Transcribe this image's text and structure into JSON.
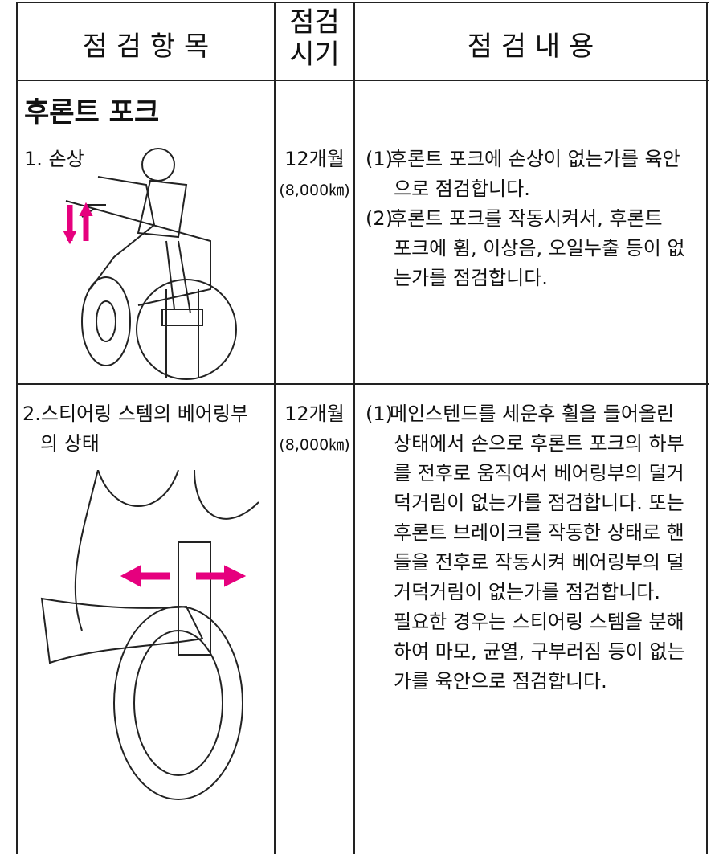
{
  "header": {
    "item": "점 검 항 목",
    "period": [
      "점검",
      "시기"
    ],
    "content": "점 검 내 용"
  },
  "section_title": "후론트 포크",
  "rows": [
    {
      "item": [
        "1. 손상"
      ],
      "period": "12개월",
      "distance": "(8,000㎞)",
      "content": [
        {
          "marker": "(1)",
          "lines": [
            "후론트 포크에 손상이 없는가를 육안",
            "으로 점검합니다."
          ]
        },
        {
          "marker": "(2)",
          "lines": [
            "후론트 포크를 작동시켜서, 후론트",
            "포크에 휨, 이상음, 오일누출 등이 없",
            "는가를 점검합니다."
          ]
        }
      ]
    },
    {
      "item": [
        "2.스티어링 스템의 베어링부",
        "의 상태"
      ],
      "period": "12개월",
      "distance": "(8,000㎞)",
      "content": [
        {
          "marker": "(1)",
          "lines": [
            "메인스텐드를 세운후 휠을 들어올린",
            "상태에서 손으로 후론트 포크의 하부",
            "를 전후로 움직여서 베어링부의 덜거",
            "덕거림이 없는가를 점검합니다. 또는",
            "후론트 브레이크를 작동한 상태로 핸",
            "들을 전후로 작동시켜 베어링부의 덜",
            "거덕거림이 없는가를 점검합니다.",
            "필요한 경우는 스티어링 스템을 분해",
            "하여 마모, 균열, 구부러짐 등이 없는",
            "가를 육안으로 점검합니다."
          ]
        }
      ]
    }
  ]
}
